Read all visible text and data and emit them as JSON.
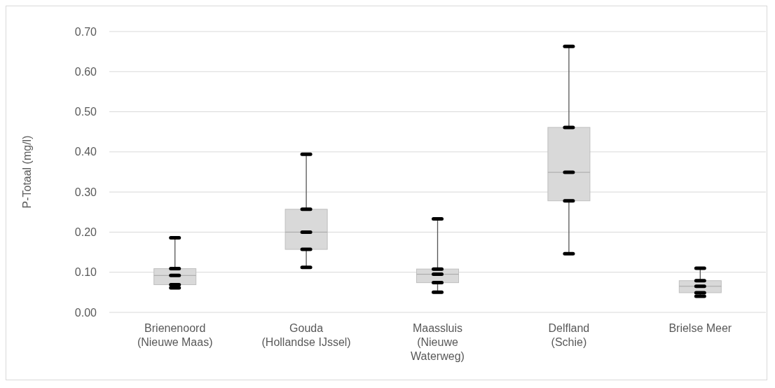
{
  "chart_data": {
    "type": "box",
    "ylabel": "P-Totaal (mg/l)",
    "categories": [
      "Brienenoord (Nieuwe Maas)",
      "Gouda (Hollandse IJssel)",
      "Maassluis (Nieuwe Waterweg)",
      "Delfland (Schie)",
      "Brielse Meer"
    ],
    "boxes": [
      {
        "low": 0.061,
        "q1": 0.069,
        "median": 0.092,
        "q3": 0.109,
        "high": 0.186
      },
      {
        "low": 0.112,
        "q1": 0.157,
        "median": 0.2,
        "q3": 0.257,
        "high": 0.394
      },
      {
        "low": 0.05,
        "q1": 0.074,
        "median": 0.095,
        "q3": 0.108,
        "high": 0.233
      },
      {
        "low": 0.146,
        "q1": 0.278,
        "median": 0.349,
        "q3": 0.461,
        "high": 0.663
      },
      {
        "low": 0.04,
        "q1": 0.049,
        "median": 0.065,
        "q3": 0.079,
        "high": 0.11
      }
    ],
    "color": "#d9d9d9",
    "ylim": [
      0,
      0.7
    ],
    "yticks": [
      {
        "value": 0,
        "label": "0.00"
      },
      {
        "value": 0.1,
        "label": "0.10"
      },
      {
        "value": 0.2,
        "label": "0.20"
      },
      {
        "value": 0.3,
        "label": "0.30"
      },
      {
        "value": 0.4,
        "label": "0.40"
      },
      {
        "value": 0.5,
        "label": "0.50"
      },
      {
        "value": 0.6,
        "label": "0.60"
      },
      {
        "value": 0.7,
        "label": "0.70"
      }
    ],
    "grid": "y",
    "marker": "square"
  }
}
